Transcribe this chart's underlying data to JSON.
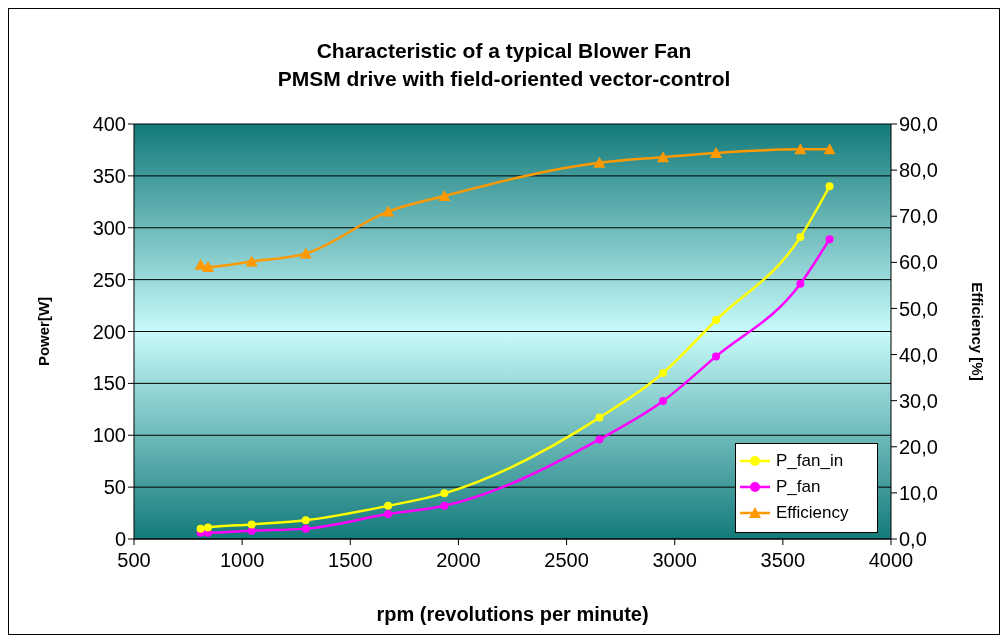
{
  "chart_data": {
    "type": "line",
    "title": "Characteristic of a typical Blower Fan\nPMSM drive with field-oriented vector-control",
    "xlabel": "rpm (revolutions per minute)",
    "ylabel": "Power[W]",
    "y2label": "Efficiency [%]",
    "x": [
      808,
      842,
      1044,
      1294,
      1675,
      1935,
      2652,
      2946,
      3191,
      3581,
      3716
    ],
    "series": [
      {
        "name": "P_fan_in",
        "color": "#ffff00",
        "marker": "circle",
        "values": [
          10,
          11,
          14,
          18,
          32,
          44,
          117,
          160,
          211,
          291,
          340
        ]
      },
      {
        "name": "P_fan",
        "color": "#ff00ff",
        "marker": "circle",
        "values": [
          6,
          6,
          8,
          10,
          24,
          32,
          96,
          133,
          176,
          246,
          289
        ]
      },
      {
        "name": "Efficiency",
        "color": "#ff9900",
        "marker": "triangle",
        "axis": "y2",
        "values": [
          59.5,
          59.0,
          60.2,
          61.9,
          71.0,
          74.4,
          81.6,
          82.8,
          83.7,
          84.5,
          84.5
        ]
      }
    ],
    "xlim": [
      500,
      4000
    ],
    "xticks": [
      500,
      1000,
      1500,
      2000,
      2500,
      3000,
      3500,
      4000
    ],
    "ylim": [
      0,
      400
    ],
    "yticks": [
      0,
      50,
      100,
      150,
      200,
      250,
      300,
      350,
      400
    ],
    "y2lim": [
      0,
      90
    ],
    "y2ticks": [
      {
        "value": 0,
        "label": "0,0"
      },
      {
        "value": 10,
        "label": "10,0"
      },
      {
        "value": 20,
        "label": "20,0"
      },
      {
        "value": 30,
        "label": "30,0"
      },
      {
        "value": 40,
        "label": "40,0"
      },
      {
        "value": 50,
        "label": "50,0"
      },
      {
        "value": 60,
        "label": "60,0"
      },
      {
        "value": 70,
        "label": "70,0"
      },
      {
        "value": 80,
        "label": "80,0"
      },
      {
        "value": 90,
        "label": "90,0"
      }
    ],
    "grid": "y",
    "legend": "bottom right"
  }
}
